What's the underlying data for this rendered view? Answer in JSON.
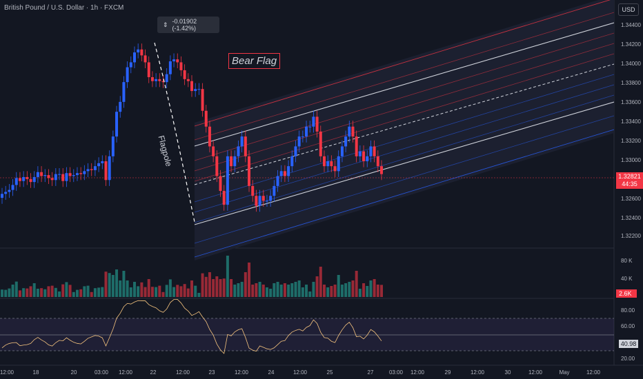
{
  "header": {
    "symbol_title": "British Pound / U.S. Dollar · 1h · FXCM"
  },
  "currency_button": "USD",
  "measure": {
    "value": "-0.01902 (-1.42%)",
    "icon": "arrows-vertical-icon"
  },
  "annotations": {
    "bear_flag": "Bear Flag",
    "flagpole": "Flagpole"
  },
  "price_axis": {
    "ticks": [
      "1.34400",
      "1.34200",
      "1.34000",
      "1.33800",
      "1.33600",
      "1.33400",
      "1.33200",
      "1.33000",
      "1.32600",
      "1.32400",
      "1.32200"
    ],
    "last_price": "1.32821",
    "countdown": "44:35"
  },
  "volume_axis": {
    "ticks": [
      "80 K",
      "40 K"
    ],
    "last_volume": "2.6K"
  },
  "rsi_axis": {
    "ticks": [
      "80.00",
      "60.00",
      "20.00"
    ],
    "last_value": "40.98"
  },
  "time_axis": {
    "ticks": [
      "12:00",
      "18",
      "20",
      "03:00",
      "12:00",
      "22",
      "12:00",
      "23",
      "12:00",
      "24",
      "12:00",
      "25",
      "27",
      "03:00",
      "12:00",
      "29",
      "12:00",
      "30",
      "12:00",
      "May",
      "12:00"
    ]
  },
  "colors": {
    "up": "#26a69a",
    "down": "#f23645",
    "candle_up": "#2962ff",
    "background": "#131722",
    "channel_white": "#d1d4dc",
    "channel_red": "#f23645",
    "channel_blue": "#2962ff"
  },
  "chart_data": {
    "type": "candlestick",
    "title": "British Pound / U.S. Dollar · 1h · FXCM",
    "ylim": [
      1.321,
      1.3458
    ],
    "close_approx": [
      1.3262,
      1.3264,
      1.3266,
      1.3271,
      1.3278,
      1.3275,
      1.3279,
      1.3277,
      1.3274,
      1.3279,
      1.3284,
      1.328,
      1.3281,
      1.3278,
      1.3276,
      1.3282,
      1.3282,
      1.3275,
      1.3283,
      1.328,
      1.3281,
      1.3283,
      1.3282,
      1.3285,
      1.3287,
      1.3286,
      1.329,
      1.3293,
      1.3295,
      1.3276,
      1.33,
      1.332,
      1.3345,
      1.3355,
      1.3375,
      1.339,
      1.3395,
      1.3405,
      1.3408,
      1.3402,
      1.3395,
      1.338,
      1.3376,
      1.3378,
      1.3376,
      1.3375,
      1.3383,
      1.3396,
      1.3398,
      1.3395,
      1.3387,
      1.3378,
      1.3376,
      1.3366,
      1.3368,
      1.3368,
      1.3346,
      1.333,
      1.331,
      1.33,
      1.328,
      1.3265,
      1.3251,
      1.33,
      1.329,
      1.33,
      1.331,
      1.332,
      1.33,
      1.327,
      1.326,
      1.325,
      1.326,
      1.3255,
      1.3255,
      1.326,
      1.327,
      1.328,
      1.3285,
      1.328,
      1.329,
      1.33,
      1.331,
      1.332,
      1.332,
      1.333,
      1.333,
      1.334,
      1.3325,
      1.33,
      1.329,
      1.3295,
      1.329,
      1.3285,
      1.33,
      1.331,
      1.332,
      1.333,
      1.332,
      1.33,
      1.3305,
      1.3295,
      1.33,
      1.331,
      1.33,
      1.329,
      1.3282
    ],
    "volume_axis_ticks": [
      "80 K",
      "40 K"
    ],
    "rsi_levels": [
      70,
      50,
      30
    ],
    "rsi_axis_ticks": [
      "80.00",
      "60.00",
      "20.00"
    ],
    "last_price": 1.32821,
    "last_volume": "2.6K",
    "last_rsi": 40.98
  }
}
